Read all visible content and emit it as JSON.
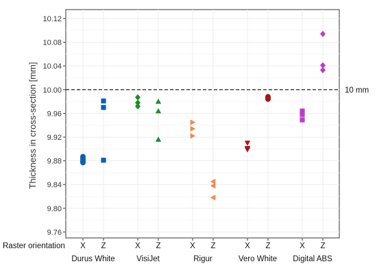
{
  "chart_data": {
    "type": "scatter",
    "ylabel": "Thickness in cross-section [mm]",
    "ylim": [
      9.75,
      10.135
    ],
    "yticks": [
      9.76,
      9.8,
      9.84,
      9.88,
      9.92,
      9.96,
      10.0,
      10.04,
      10.08,
      10.12
    ],
    "grid": true,
    "orientation_label": "Raster orientation",
    "reference_line": {
      "y": 10.0,
      "label": "10 mm"
    },
    "groups": [
      {
        "name": "Durus White",
        "color": "#0f5fb3",
        "points": [
          {
            "orientation": "X",
            "marker": "circle",
            "values": [
              9.887,
              9.884,
              9.881,
              9.879,
              9.877
            ]
          },
          {
            "orientation": "Z",
            "marker": "square",
            "values": [
              9.981,
              9.97,
              9.881
            ]
          }
        ]
      },
      {
        "name": "VisiJet",
        "color": "#1e8c2e",
        "points": [
          {
            "orientation": "X",
            "marker": "diamond",
            "values": [
              9.987,
              9.978,
              9.972
            ]
          },
          {
            "orientation": "Z",
            "marker": "triangle-up",
            "values": [
              9.98,
              9.964,
              9.916
            ]
          }
        ]
      },
      {
        "name": "Rigur",
        "color": "#f08a4b",
        "points": [
          {
            "orientation": "X",
            "marker": "triangle-right",
            "values": [
              9.945,
              9.934,
              9.922
            ]
          },
          {
            "orientation": "Z",
            "marker": "triangle-left",
            "values": [
              9.845,
              9.838,
              9.818
            ]
          }
        ]
      },
      {
        "name": "Vero White",
        "color": "#a81515",
        "points": [
          {
            "orientation": "X",
            "marker": "triangle-down",
            "values": [
              9.91,
              9.901,
              9.899
            ]
          },
          {
            "orientation": "Z",
            "marker": "circle",
            "values": [
              9.988,
              9.986,
              9.984
            ]
          }
        ]
      },
      {
        "name": "Digital ABS",
        "color": "#c03ac9",
        "points": [
          {
            "orientation": "X",
            "marker": "square",
            "values": [
              9.964,
              9.958,
              9.949
            ]
          },
          {
            "orientation": "Z",
            "marker": "diamond",
            "values": [
              10.094,
              10.041,
              10.033
            ]
          }
        ]
      }
    ]
  }
}
